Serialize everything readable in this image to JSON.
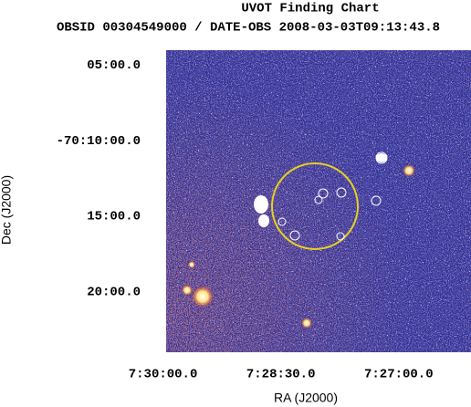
{
  "chart_data": {
    "type": "image",
    "title": "UVOT Finding Chart",
    "subtitle": "OBSID 00304549000 / DATE-OBS 2008-03-03T09:13:43.8",
    "x_label": "RA (J2000)",
    "y_label": "Dec (J2000)",
    "xlim": [
      112.49,
      111.52
    ],
    "ylim": [
      -70.4,
      -70.067
    ],
    "xticks": [
      {
        "value": 112.5,
        "label": "7:30:00.0"
      },
      {
        "value": 112.125,
        "label": "7:28:30.0"
      },
      {
        "value": 111.75,
        "label": "7:27:00.0"
      }
    ],
    "yticks": [
      {
        "value": -70.0833,
        "label": "05:00.0"
      },
      {
        "value": -70.1667,
        "label": "-70:10:00.0"
      },
      {
        "value": -70.25,
        "label": "15:00.0"
      },
      {
        "value": -70.3333,
        "label": "20:00.0"
      }
    ]
  }
}
